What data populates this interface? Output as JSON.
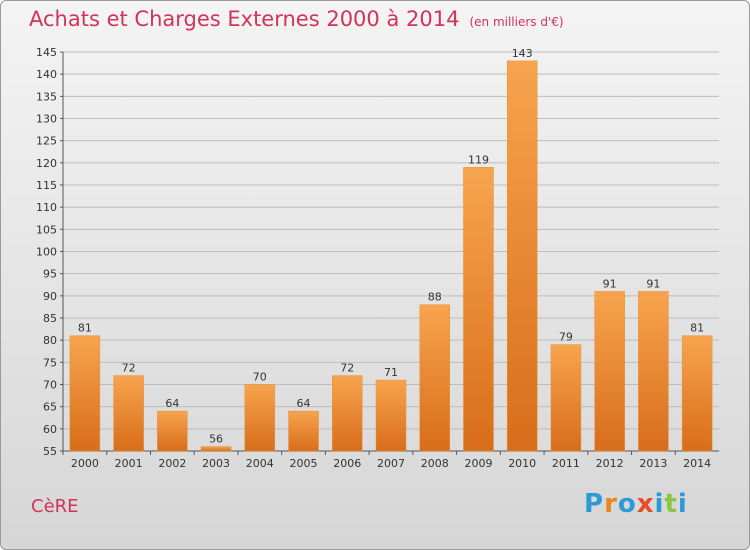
{
  "header": {
    "title": "Achats et Charges Externes 2000 à 2014",
    "unit": "(en milliers d'€)"
  },
  "footer": {
    "commune": "CèRE",
    "logo": "Proxiti"
  },
  "colors": {
    "title": "#d2335a",
    "bar_light": "#f7a44e",
    "bar_dark": "#d86d1a",
    "logo_letters": [
      "#2b9ad6",
      "#e8851c",
      "#2b9ad6",
      "#e84a2a",
      "#2b9ad6",
      "#8cc63f",
      "#2b9ad6"
    ]
  },
  "chart_data": {
    "type": "bar",
    "title": "Achats et Charges Externes 2000 à 2014",
    "subtitle": "(en milliers d'€)",
    "xlabel": "",
    "ylabel": "",
    "ylim": [
      55,
      145
    ],
    "ytick_step": 5,
    "grid": true,
    "categories": [
      "2000",
      "2001",
      "2002",
      "2003",
      "2004",
      "2005",
      "2006",
      "2007",
      "2008",
      "2009",
      "2010",
      "2011",
      "2012",
      "2013",
      "2014"
    ],
    "values": [
      81,
      72,
      64,
      56,
      70,
      64,
      72,
      71,
      88,
      119,
      143,
      79,
      91,
      91,
      81
    ]
  }
}
